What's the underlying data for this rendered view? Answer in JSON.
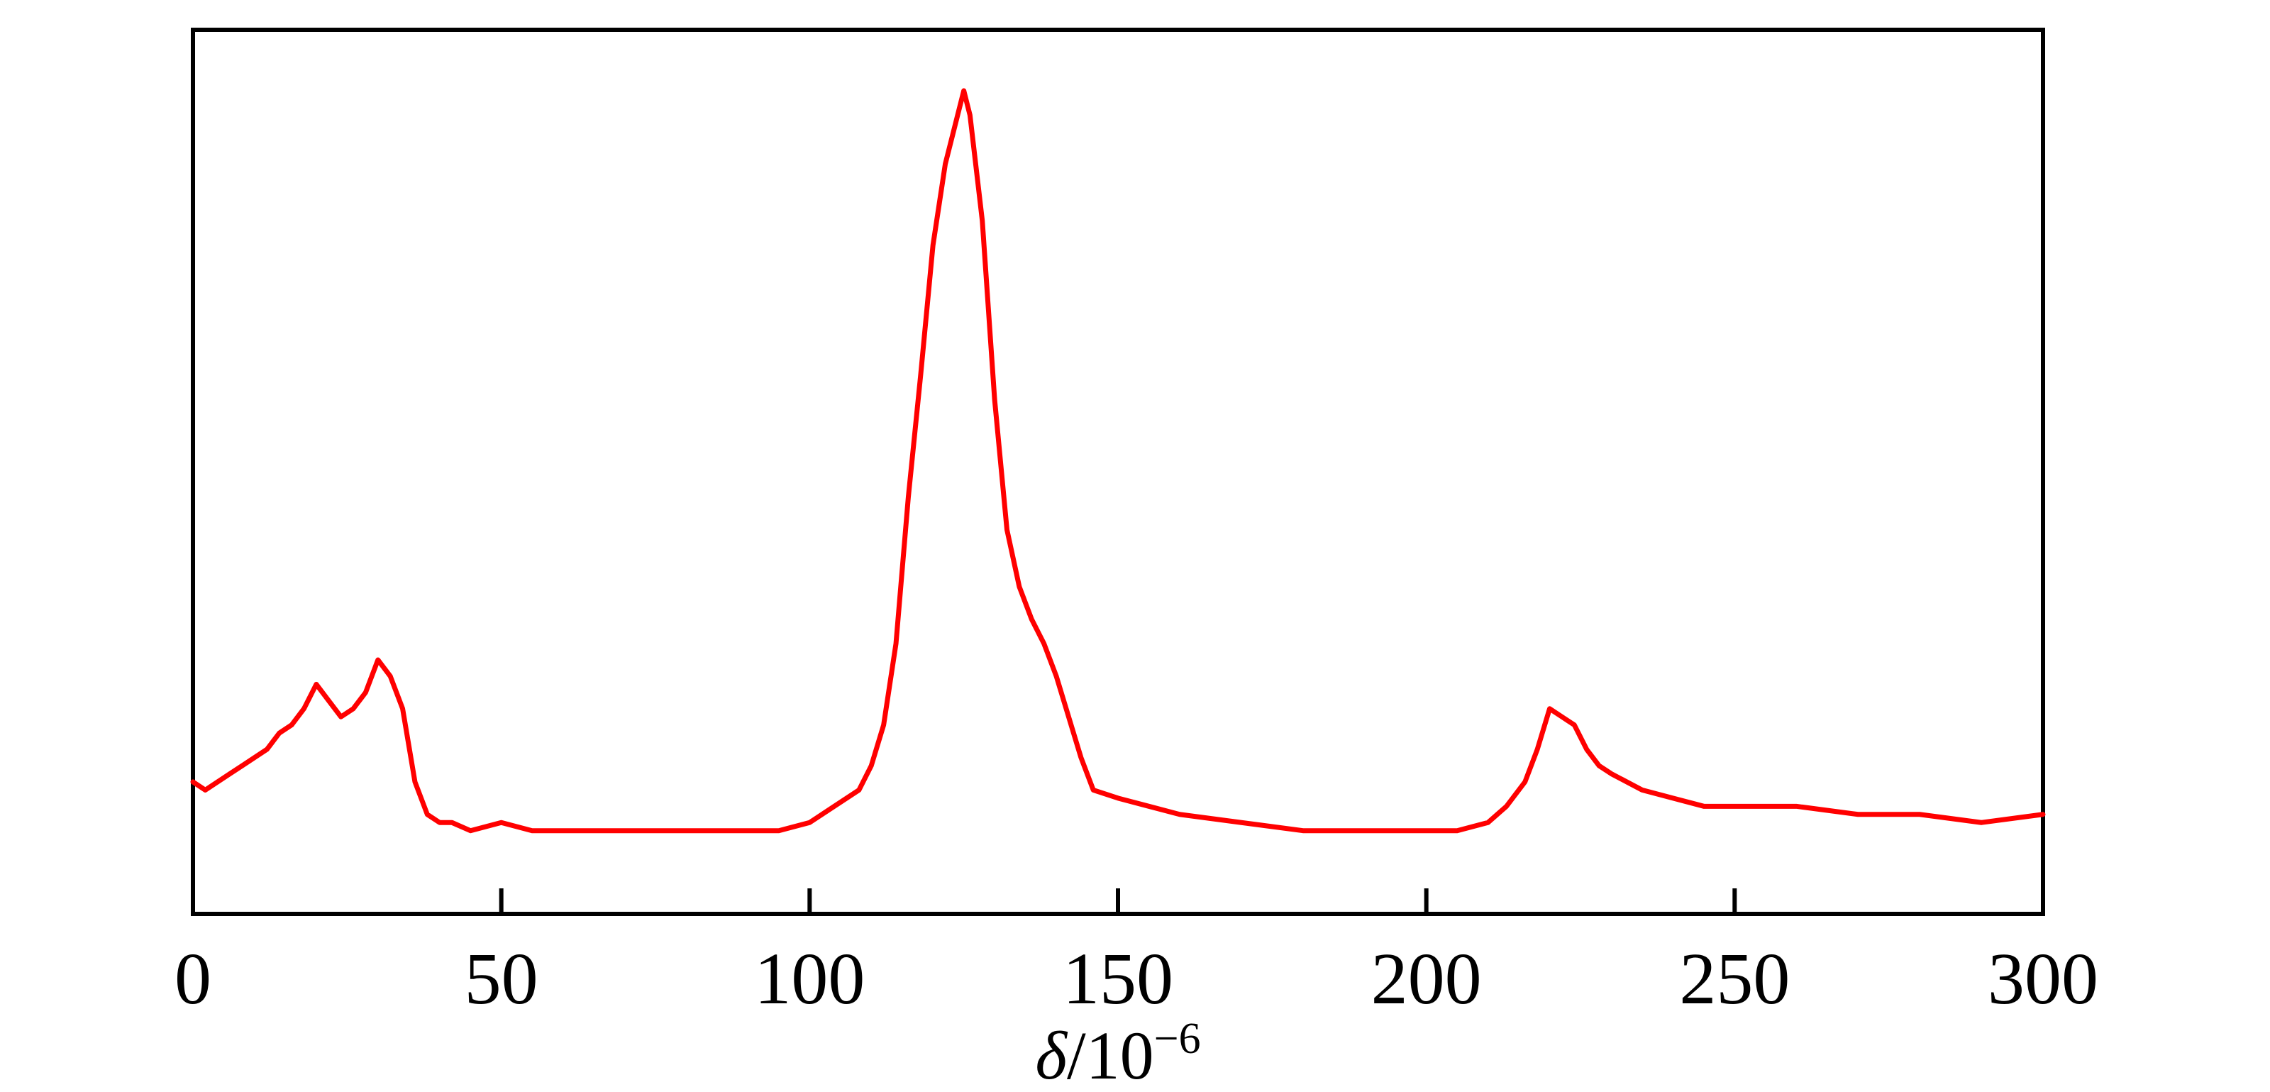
{
  "chart_data": {
    "type": "line",
    "title": "",
    "xlabel_symbol": "δ",
    "xlabel_unit": "/10",
    "xlabel_exponent": "−6",
    "ylabel": "",
    "xlim": [
      0,
      300
    ],
    "ylim": [
      0,
      100
    ],
    "y_axis_ticks_visible": false,
    "grid": false,
    "legend": "none",
    "x_ticks": [
      0,
      50,
      100,
      150,
      200,
      250,
      300
    ],
    "x_tick_labels": [
      "0",
      "50",
      "100",
      "150",
      "200",
      "250",
      "300"
    ],
    "line_color": "#ff0000",
    "series": [
      {
        "x": [
          0,
          2,
          4,
          6,
          8,
          10,
          12,
          14,
          16,
          18,
          20,
          22,
          24,
          26,
          28,
          30,
          32,
          34,
          36,
          38,
          40,
          42,
          45,
          50,
          55,
          60,
          65,
          70,
          75,
          80,
          85,
          90,
          95,
          100,
          104,
          108,
          110,
          112,
          114,
          116,
          118,
          120,
          122,
          124,
          125,
          126,
          128,
          130,
          132,
          134,
          136,
          138,
          140,
          142,
          144,
          146,
          150,
          155,
          160,
          170,
          180,
          190,
          200,
          205,
          210,
          213,
          216,
          218,
          220,
          222,
          224,
          226,
          228,
          230,
          235,
          240,
          245,
          250,
          260,
          270,
          280,
          290,
          300
        ],
        "y": [
          11,
          10,
          11,
          12,
          13,
          14,
          15,
          17,
          18,
          20,
          23,
          21,
          19,
          20,
          22,
          26,
          24,
          20,
          11,
          7,
          6,
          6,
          5,
          6,
          5,
          5,
          5,
          5,
          5,
          5,
          5,
          5,
          5,
          6,
          8,
          10,
          13,
          18,
          28,
          46,
          61,
          77,
          87,
          93,
          96,
          93,
          80,
          58,
          42,
          35,
          31,
          28,
          24,
          19,
          14,
          10,
          9,
          8,
          7,
          6,
          5,
          5,
          5,
          5,
          6,
          8,
          11,
          15,
          20,
          19,
          18,
          15,
          13,
          12,
          10,
          9,
          8,
          8,
          8,
          7,
          7,
          6,
          7
        ]
      }
    ]
  }
}
